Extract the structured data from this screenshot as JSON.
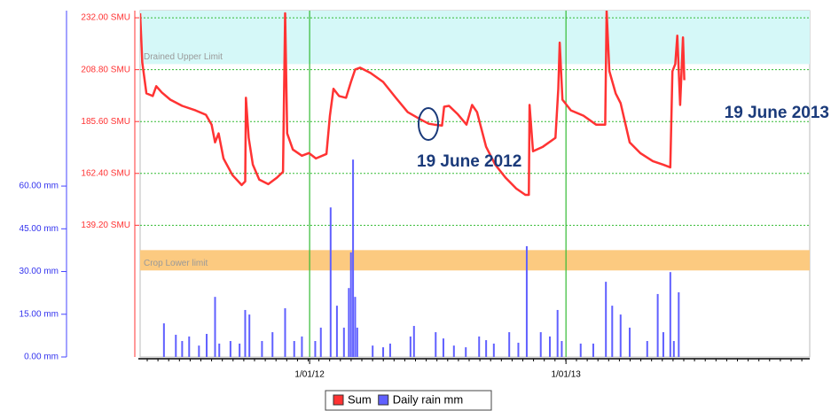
{
  "chart_data": {
    "type": "combo",
    "xlim": [
      "2011-05-04",
      "2013-12-15"
    ],
    "xticks": [
      {
        "value": "2012-01-01",
        "label": "1/01/12"
      },
      {
        "value": "2013-01-01",
        "label": "1/01/13"
      }
    ],
    "ylim": [
      0,
      121.6
    ],
    "yticks": [
      {
        "value": 0,
        "label": "0.00 mm"
      },
      {
        "value": 15,
        "label": "15.00 mm"
      },
      {
        "value": 30,
        "label": "30.00 mm"
      },
      {
        "value": 45,
        "label": "45.00 mm"
      },
      {
        "value": 60,
        "label": "60.00 mm"
      }
    ],
    "y2lim": [
      80.3,
      235.2
    ],
    "y2ticks": [
      {
        "value": 139.2,
        "label": "139.20 SMU"
      },
      {
        "value": 162.4,
        "label": "162.40 SMU"
      },
      {
        "value": 185.6,
        "label": "185.60 SMU"
      },
      {
        "value": 208.8,
        "label": "208.80 SMU"
      },
      {
        "value": 232,
        "label": "232.00 SMU"
      }
    ],
    "grid": true,
    "legend": "bottom",
    "bands": [
      {
        "label": "Drained Upper Limit",
        "from": 211.3,
        "to": 235.2,
        "color": "#d5f8f8",
        "axis": "y2"
      },
      {
        "label": "Crop Lower limit",
        "from": 119.0,
        "to": 128.1,
        "color": "#fcca80",
        "axis": "y2"
      }
    ],
    "annotations": [
      "19 June 2012",
      "19 June 2013"
    ],
    "series": [
      {
        "name": "Sum",
        "type": "line",
        "color": "#ff3333",
        "axis": "y2",
        "x": [
          "2011-05-04",
          "2011-05-07",
          "2011-05-13",
          "2011-05-22",
          "2011-05-27",
          "2011-06-04",
          "2011-06-16",
          "2011-07-03",
          "2011-07-22",
          "2011-08-06",
          "2011-08-14",
          "2011-08-19",
          "2011-08-24",
          "2011-08-31",
          "2011-09-13",
          "2011-09-26",
          "2011-10-01",
          "2011-10-02",
          "2011-10-06",
          "2011-10-12",
          "2011-10-21",
          "2011-11-03",
          "2011-11-15",
          "2011-11-24",
          "2011-11-27",
          "2011-11-30",
          "2011-12-08",
          "2011-12-21",
          "2011-12-31",
          "2012-01-10",
          "2012-01-25",
          "2012-01-30",
          "2012-02-04",
          "2012-02-12",
          "2012-02-22",
          "2012-02-29",
          "2012-03-06",
          "2012-03-13",
          "2012-03-28",
          "2012-04-15",
          "2012-05-03",
          "2012-05-20",
          "2012-06-07",
          "2012-06-19",
          "2012-06-27",
          "2012-07-08",
          "2012-07-11",
          "2012-07-18",
          "2012-07-30",
          "2012-08-12",
          "2012-08-20",
          "2012-08-27",
          "2012-09-09",
          "2012-09-22",
          "2012-10-07",
          "2012-10-22",
          "2012-11-04",
          "2012-11-09",
          "2012-11-10",
          "2012-11-15",
          "2012-11-29",
          "2012-12-17",
          "2012-12-21",
          "2012-12-23",
          "2012-12-27",
          "2013-01-08",
          "2013-01-26",
          "2013-02-13",
          "2013-02-26",
          "2013-02-28",
          "2013-03-04",
          "2013-03-13",
          "2013-03-20",
          "2013-04-02",
          "2013-04-17",
          "2013-05-05",
          "2013-05-20",
          "2013-05-30",
          "2013-06-02",
          "2013-06-06",
          "2013-06-09",
          "2013-06-13",
          "2013-06-17",
          "2013-06-19"
        ],
        "values": [
          234.0,
          212.1,
          198.2,
          197.0,
          201.4,
          198.6,
          195.4,
          192.6,
          190.6,
          188.6,
          184.2,
          176.3,
          180.3,
          169.1,
          161.6,
          157.2,
          158.8,
          196.2,
          178.3,
          166.3,
          159.6,
          157.6,
          160.4,
          163.1,
          234.0,
          180.3,
          173.1,
          170.3,
          171.5,
          169.1,
          171.1,
          188.2,
          200.2,
          197.0,
          196.2,
          203.3,
          208.9,
          209.7,
          207.3,
          203.3,
          196.2,
          189.8,
          186.6,
          184.6,
          184.2,
          183.8,
          192.2,
          192.6,
          189.0,
          184.2,
          193.0,
          189.8,
          174.3,
          166.3,
          160.4,
          155.6,
          152.8,
          152.8,
          193.0,
          172.3,
          174.3,
          178.3,
          200.2,
          220.9,
          195.4,
          190.6,
          188.2,
          184.2,
          184.2,
          235.0,
          208.1,
          198.2,
          193.8,
          176.3,
          171.5,
          167.9,
          166.3,
          165.1,
          208.1,
          211.3,
          224.0,
          193.0,
          223.2,
          204.1
        ]
      },
      {
        "name": "Daily rain mm",
        "type": "bar",
        "color": "#6060ff",
        "axis": "y",
        "x": [
          "2011-06-07",
          "2011-06-24",
          "2011-07-03",
          "2011-07-13",
          "2011-07-27",
          "2011-08-07",
          "2011-08-19",
          "2011-08-25",
          "2011-09-10",
          "2011-09-23",
          "2011-10-01",
          "2011-10-07",
          "2011-10-25",
          "2011-11-09",
          "2011-11-27",
          "2011-12-10",
          "2011-12-21",
          "2012-01-09",
          "2012-01-17",
          "2012-01-31",
          "2012-02-09",
          "2012-02-19",
          "2012-02-26",
          "2012-02-29",
          "2012-03-03",
          "2012-03-06",
          "2012-03-09",
          "2012-03-31",
          "2012-04-15",
          "2012-04-25",
          "2012-05-24",
          "2012-05-29",
          "2012-06-29",
          "2012-07-10",
          "2012-07-25",
          "2012-08-11",
          "2012-08-30",
          "2012-09-09",
          "2012-09-20",
          "2012-10-12",
          "2012-10-25",
          "2012-11-06",
          "2012-11-26",
          "2012-12-09",
          "2012-12-20",
          "2012-12-26",
          "2013-01-22",
          "2013-02-09",
          "2013-02-27",
          "2013-03-08",
          "2013-03-20",
          "2013-04-02",
          "2013-04-27",
          "2013-05-12",
          "2013-05-20",
          "2013-05-30",
          "2013-06-04",
          "2013-06-11"
        ],
        "values": [
          11.8,
          7.8,
          5.6,
          7.2,
          4.0,
          8.1,
          21.1,
          4.7,
          5.6,
          4.7,
          16.5,
          14.9,
          5.6,
          8.7,
          17.1,
          5.6,
          7.2,
          5.6,
          10.3,
          52.5,
          18.0,
          10.3,
          24.2,
          36.7,
          69.3,
          21.1,
          10.3,
          4.0,
          3.4,
          4.7,
          7.2,
          10.9,
          8.7,
          6.5,
          4.0,
          3.4,
          7.2,
          5.9,
          4.7,
          8.7,
          5.0,
          38.9,
          8.7,
          7.2,
          16.5,
          5.6,
          4.7,
          4.7,
          26.4,
          18.0,
          14.9,
          10.3,
          5.6,
          22.1,
          8.7,
          29.8,
          5.6,
          22.7
        ]
      }
    ]
  }
}
